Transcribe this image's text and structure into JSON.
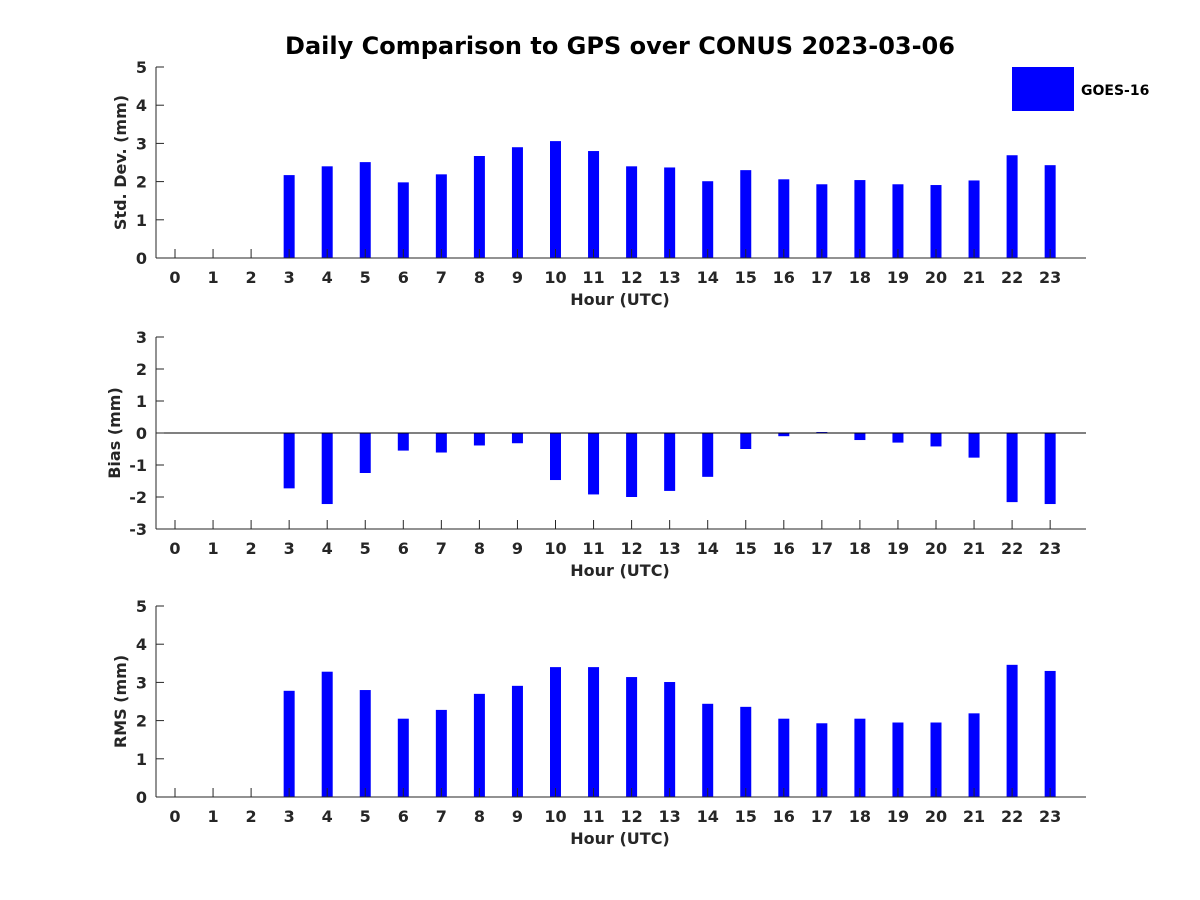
{
  "title": "Daily Comparison to GPS over CONUS 2023-03-06",
  "legend": {
    "label": "GOES-16",
    "color": "#0000ff",
    "position": "top-right"
  },
  "chart_data": [
    {
      "type": "bar",
      "title": "Daily Comparison to GPS over CONUS 2023-03-06",
      "xlabel": "Hour (UTC)",
      "ylabel": "Std. Dev. (mm)",
      "ylim": [
        0,
        5
      ],
      "yticks": [
        0,
        1,
        2,
        3,
        4,
        5
      ],
      "categories": [
        0,
        1,
        2,
        3,
        4,
        5,
        6,
        7,
        8,
        9,
        10,
        11,
        12,
        13,
        14,
        15,
        16,
        17,
        18,
        19,
        20,
        21,
        22,
        23
      ],
      "series": [
        {
          "name": "GOES-16",
          "color": "#0000ff",
          "values": [
            null,
            null,
            null,
            2.17,
            2.4,
            2.51,
            1.98,
            2.19,
            2.67,
            2.9,
            3.06,
            2.8,
            2.4,
            2.37,
            2.01,
            2.3,
            2.06,
            1.93,
            2.04,
            1.93,
            1.91,
            2.03,
            2.69,
            2.43
          ]
        }
      ]
    },
    {
      "type": "bar",
      "xlabel": "Hour (UTC)",
      "ylabel": "Bias (mm)",
      "ylim": [
        -3,
        3
      ],
      "yticks": [
        -3,
        -2,
        -1,
        0,
        1,
        2,
        3
      ],
      "categories": [
        0,
        1,
        2,
        3,
        4,
        5,
        6,
        7,
        8,
        9,
        10,
        11,
        12,
        13,
        14,
        15,
        16,
        17,
        18,
        19,
        20,
        21,
        22,
        23
      ],
      "series": [
        {
          "name": "GOES-16",
          "color": "#0000ff",
          "values": [
            null,
            null,
            null,
            -1.73,
            -2.22,
            -1.25,
            -0.55,
            -0.61,
            -0.39,
            -0.32,
            -1.47,
            -1.92,
            -2.0,
            -1.81,
            -1.37,
            -0.5,
            -0.1,
            0.03,
            -0.22,
            -0.3,
            -0.42,
            -0.77,
            -2.16,
            -2.22
          ]
        }
      ]
    },
    {
      "type": "bar",
      "xlabel": "Hour (UTC)",
      "ylabel": "RMS (mm)",
      "ylim": [
        0,
        5
      ],
      "yticks": [
        0,
        1,
        2,
        3,
        4,
        5
      ],
      "categories": [
        0,
        1,
        2,
        3,
        4,
        5,
        6,
        7,
        8,
        9,
        10,
        11,
        12,
        13,
        14,
        15,
        16,
        17,
        18,
        19,
        20,
        21,
        22,
        23
      ],
      "series": [
        {
          "name": "GOES-16",
          "color": "#0000ff",
          "values": [
            null,
            null,
            null,
            2.78,
            3.28,
            2.8,
            2.05,
            2.28,
            2.7,
            2.91,
            3.4,
            3.4,
            3.14,
            3.01,
            2.44,
            2.36,
            2.05,
            1.93,
            2.05,
            1.95,
            1.95,
            2.19,
            3.46,
            3.3
          ]
        }
      ]
    }
  ]
}
